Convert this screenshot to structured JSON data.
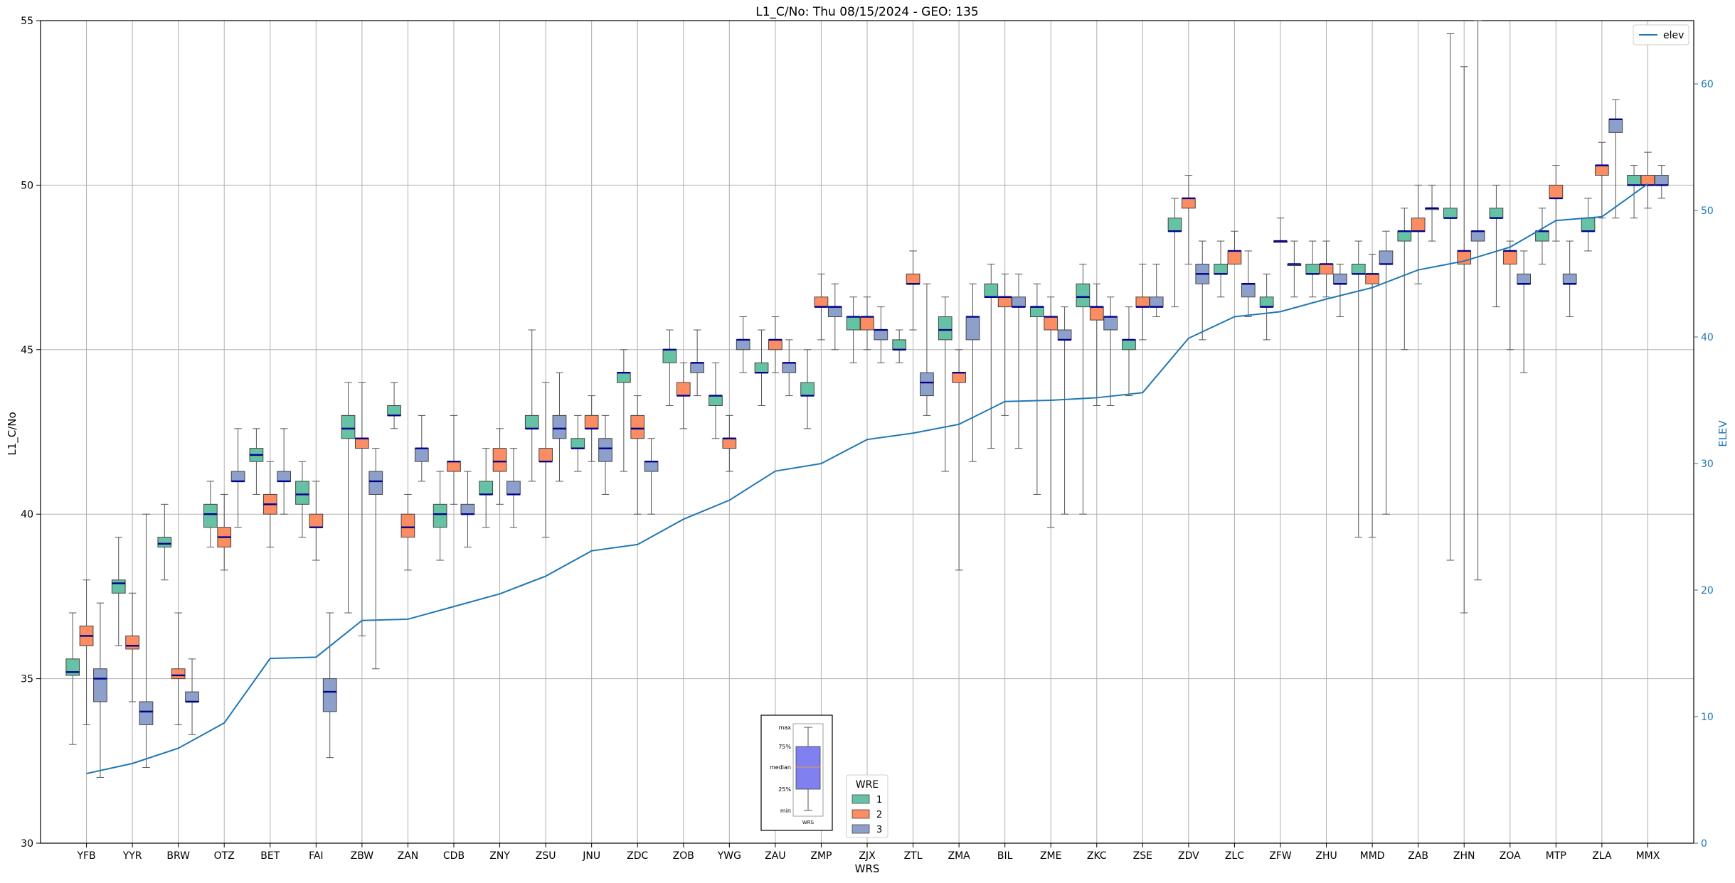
{
  "chart_data": {
    "type": "box",
    "title": "L1_C/No: Thu 08/15/2024 - GEO: 135",
    "xlabel": "WRS",
    "ylabel": "L1_C/No",
    "y2label": "ELEV",
    "ylim": [
      30,
      55
    ],
    "y2lim": [
      0,
      65
    ],
    "yticks": [
      30,
      35,
      40,
      45,
      50,
      55
    ],
    "y2ticks": [
      0,
      10,
      20,
      30,
      40,
      50,
      60
    ],
    "grid": true,
    "categories": [
      "YFB",
      "YYR",
      "BRW",
      "OTZ",
      "BET",
      "FAI",
      "ZBW",
      "ZAN",
      "CDB",
      "ZNY",
      "ZSU",
      "JNU",
      "ZDC",
      "ZOB",
      "YWG",
      "ZAU",
      "ZMP",
      "ZJX",
      "ZTL",
      "ZMA",
      "BIL",
      "ZME",
      "ZKC",
      "ZSE",
      "ZDV",
      "ZLC",
      "ZFW",
      "ZHU",
      "MMD",
      "ZAB",
      "ZHN",
      "ZOA",
      "MTP",
      "ZLA",
      "MMX"
    ],
    "legend_elev": {
      "label": "elev",
      "position": "top-right",
      "color": "#1f77b4"
    },
    "legend_wre": {
      "title": "WRE",
      "entries": [
        "1",
        "2",
        "3"
      ],
      "position": "bottom-center"
    },
    "series_colors": [
      "#66c2a5",
      "#fc8d62",
      "#8da0cb"
    ],
    "median_color": "#00008b",
    "elev_series": {
      "name": "elev",
      "color": "#1f77b4",
      "values": [
        5.5,
        6.3,
        7.5,
        9.5,
        14.6,
        14.7,
        17.6,
        17.7,
        18.7,
        19.7,
        21.1,
        23.1,
        23.6,
        25.6,
        27.1,
        29.4,
        30.0,
        31.9,
        32.4,
        33.1,
        34.9,
        35.0,
        35.2,
        35.6,
        39.9,
        41.6,
        42.0,
        43.0,
        43.9,
        45.3,
        46.0,
        47.1,
        49.2,
        49.5,
        52.1
      ]
    },
    "wre_series": [
      {
        "name": "1",
        "boxes": [
          [
            33,
            35.1,
            35.2,
            35.6,
            37
          ],
          [
            36,
            37.6,
            37.9,
            38,
            39.3
          ],
          [
            38,
            39,
            39.1,
            39.3,
            40.3
          ],
          [
            39,
            39.6,
            40,
            40.3,
            41
          ],
          [
            40.6,
            41.6,
            41.8,
            42,
            42.6
          ],
          [
            39.3,
            40.3,
            40.6,
            41,
            41.6
          ],
          [
            37,
            42.3,
            42.6,
            43,
            44
          ],
          [
            42.6,
            43,
            43,
            43.3,
            44
          ],
          [
            38.6,
            39.6,
            40,
            40.3,
            41.3
          ],
          [
            39.6,
            40.6,
            40.6,
            41,
            42
          ],
          [
            41,
            42.6,
            42.6,
            43,
            45.6
          ],
          [
            41.3,
            42,
            42,
            42.3,
            43
          ],
          [
            41.3,
            44,
            44.3,
            44.3,
            45
          ],
          [
            43.3,
            44.6,
            45,
            45,
            45.6
          ],
          [
            42.3,
            43.3,
            43.6,
            43.6,
            44.6
          ],
          [
            43.3,
            44.3,
            44.3,
            44.6,
            45.6
          ],
          [
            42.6,
            43.6,
            43.6,
            44,
            45
          ],
          [
            44.6,
            45.6,
            46,
            46,
            46.6
          ],
          [
            44.6,
            45,
            45,
            45.3,
            45.6
          ],
          [
            41.3,
            45.3,
            45.6,
            46,
            46.6
          ],
          [
            42,
            46.6,
            46.6,
            47,
            47.6
          ],
          [
            40.6,
            46,
            46.3,
            46.3,
            47
          ],
          [
            40,
            46.3,
            46.6,
            47,
            47.6
          ],
          [
            43.6,
            45,
            45.3,
            45.3,
            46.3
          ],
          [
            46.3,
            48.6,
            48.6,
            49,
            49.6
          ],
          [
            46.6,
            47.3,
            47.3,
            47.6,
            48.3
          ],
          [
            45.3,
            46.3,
            46.3,
            46.6,
            47.3
          ],
          [
            46.6,
            47.3,
            47.3,
            47.6,
            48.3
          ],
          [
            39.3,
            47.3,
            47.3,
            47.6,
            48.3
          ],
          [
            45,
            48.3,
            48.6,
            48.6,
            49.3
          ],
          [
            38.6,
            49,
            49,
            49.3,
            54.6
          ],
          [
            46.3,
            49,
            49,
            49.3,
            50
          ],
          [
            47.6,
            48.3,
            48.6,
            48.6,
            49.3
          ],
          [
            48,
            48.6,
            48.6,
            49,
            49.6
          ],
          [
            49,
            50,
            50,
            50.3,
            50.6
          ]
        ]
      },
      {
        "name": "2",
        "boxes": [
          [
            33.6,
            36,
            36.3,
            36.6,
            38
          ],
          [
            34.3,
            35.9,
            36,
            36.3,
            37.6
          ],
          [
            33.6,
            35,
            35.1,
            35.3,
            37
          ],
          [
            38.3,
            39,
            39.3,
            39.6,
            40.6
          ],
          [
            39,
            40,
            40.3,
            40.6,
            41.6
          ],
          [
            38.6,
            39.6,
            39.6,
            40,
            41
          ],
          [
            36.3,
            42,
            42.3,
            42.3,
            44
          ],
          [
            38.3,
            39.3,
            39.6,
            40,
            40.6
          ],
          [
            40.3,
            41.3,
            41.6,
            41.6,
            43
          ],
          [
            40.3,
            41.3,
            41.6,
            42,
            42.6
          ],
          [
            39.3,
            41.6,
            41.6,
            42,
            44
          ],
          [
            41.6,
            42.6,
            42.6,
            43,
            43.6
          ],
          [
            40,
            42.3,
            42.6,
            43,
            43.6
          ],
          [
            42.6,
            43.6,
            43.6,
            44,
            44.6
          ],
          [
            41.3,
            42,
            42.3,
            42.3,
            43
          ],
          [
            44.3,
            45,
            45.3,
            45.3,
            46
          ],
          [
            45.3,
            46.3,
            46.3,
            46.6,
            47.3
          ],
          [
            45,
            45.6,
            46,
            46,
            46.6
          ],
          [
            45.6,
            47,
            47,
            47.3,
            48
          ],
          [
            38.3,
            44,
            44.3,
            44.3,
            45
          ],
          [
            43,
            46.3,
            46.6,
            46.6,
            47.3
          ],
          [
            39.6,
            45.6,
            46,
            46,
            46.6
          ],
          [
            43.3,
            45.9,
            46.3,
            46.3,
            47
          ],
          [
            45.3,
            46.3,
            46.3,
            46.6,
            47.6
          ],
          [
            47.6,
            49.3,
            49.6,
            49.6,
            50.3
          ],
          [
            47.6,
            47.6,
            48,
            48,
            48.6
          ],
          [
            48.3,
            48.3,
            48.3,
            48.3,
            49
          ],
          [
            46.6,
            47.3,
            47.6,
            47.6,
            48.3
          ],
          [
            39.3,
            47,
            47.3,
            47.3,
            47.9
          ],
          [
            47,
            48.6,
            48.6,
            49,
            50
          ],
          [
            37,
            47.6,
            48,
            48,
            53.6
          ],
          [
            45,
            47.6,
            48,
            48,
            48.3
          ],
          [
            48.3,
            49.6,
            49.6,
            50,
            50.6
          ],
          [
            49,
            50.3,
            50.6,
            50.6,
            51.3
          ],
          [
            49.3,
            50,
            50,
            50.3,
            51
          ]
        ]
      },
      {
        "name": "3",
        "boxes": [
          [
            32,
            34.3,
            35,
            35.3,
            37.3
          ],
          [
            32.3,
            33.6,
            34,
            34.3,
            40
          ],
          [
            33.3,
            34.3,
            34.3,
            34.6,
            35.6
          ],
          [
            39.6,
            41,
            41,
            41.3,
            42.6
          ],
          [
            40,
            41,
            41,
            41.3,
            42.6
          ],
          [
            32.6,
            34,
            34.6,
            35,
            37
          ],
          [
            35.3,
            40.6,
            41,
            41.3,
            42
          ],
          [
            41,
            41.6,
            42,
            42,
            43
          ],
          [
            39,
            40,
            40,
            40.3,
            41.3
          ],
          [
            39.6,
            40.6,
            40.6,
            41,
            42
          ],
          [
            41,
            42.3,
            42.6,
            43,
            44.3
          ],
          [
            40.6,
            41.6,
            42,
            42.3,
            43
          ],
          [
            40,
            41.3,
            41.6,
            41.6,
            42.3
          ],
          [
            43.6,
            44.3,
            44.6,
            44.6,
            45.6
          ],
          [
            44.3,
            45,
            45.3,
            45.3,
            46
          ],
          [
            43.6,
            44.3,
            44.6,
            44.6,
            45.3
          ],
          [
            45,
            46,
            46.3,
            46.3,
            47
          ],
          [
            44.6,
            45.3,
            45.6,
            45.6,
            46.3
          ],
          [
            43,
            43.6,
            44,
            44.3,
            47
          ],
          [
            41.6,
            45.3,
            46,
            46,
            47
          ],
          [
            42,
            46.3,
            46.3,
            46.6,
            47.3
          ],
          [
            40,
            45.3,
            45.3,
            45.6,
            46.3
          ],
          [
            43.3,
            45.6,
            46,
            46,
            46.6
          ],
          [
            46,
            46.3,
            46.3,
            46.6,
            47.6
          ],
          [
            45.3,
            47,
            47.3,
            47.6,
            48.3
          ],
          [
            46,
            46.6,
            47,
            47,
            48
          ],
          [
            46.6,
            47.6,
            47.6,
            47.6,
            48.3
          ],
          [
            46,
            47,
            47,
            47.3,
            47.6
          ],
          [
            40,
            47.6,
            47.6,
            48,
            48.6
          ],
          [
            48.3,
            49.3,
            49.3,
            49.3,
            50
          ],
          [
            38,
            48.3,
            48.6,
            48.6,
            55
          ],
          [
            44.3,
            47,
            47,
            47.3,
            48
          ],
          [
            46,
            47,
            47,
            47.3,
            48.3
          ],
          [
            49,
            51.6,
            52,
            52,
            52.6
          ],
          [
            49.6,
            50,
            50,
            50.3,
            50.6
          ]
        ]
      }
    ],
    "inset_key": {
      "labels": [
        "max",
        "75%",
        "median",
        "25%",
        "min"
      ],
      "xlabel": "WRS",
      "box_color": "#8080f0"
    }
  }
}
